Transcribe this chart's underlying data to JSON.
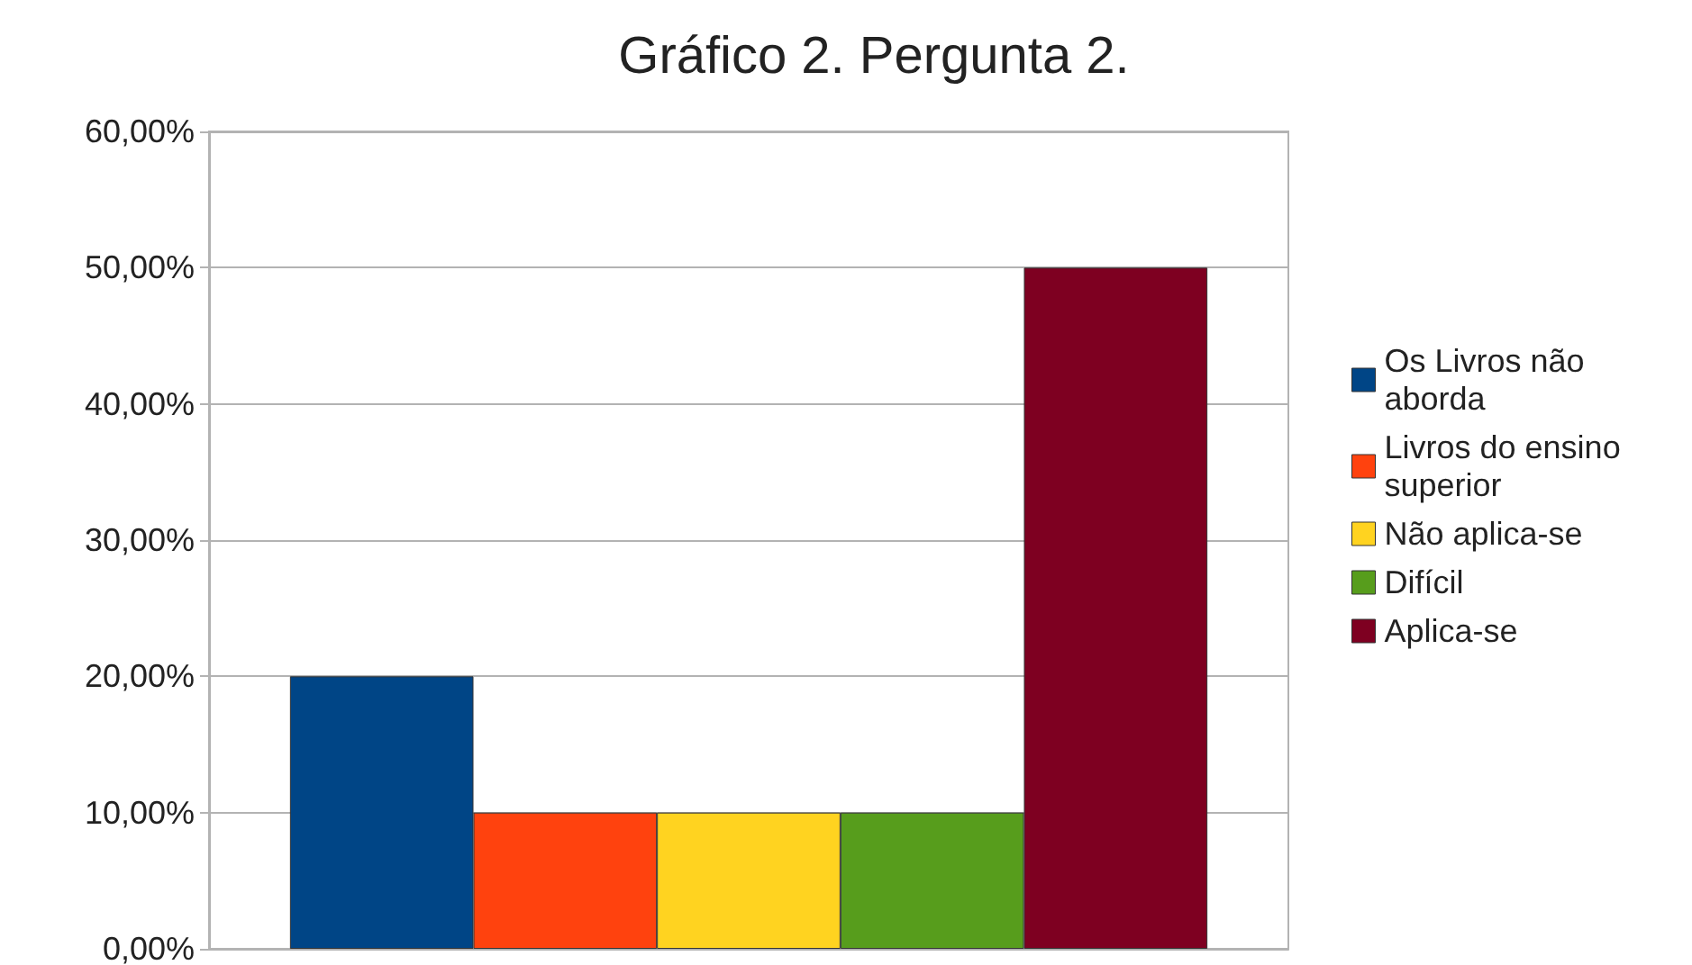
{
  "chart_data": {
    "type": "bar",
    "title": "Gráfico 2. Pergunta 2.",
    "categories": [
      null
    ],
    "series": [
      {
        "name": "Os Livros não aborda",
        "color": "#004586",
        "values": [
          20
        ]
      },
      {
        "name": "Livros do ensino superior",
        "color": "#ff420e",
        "values": [
          10
        ]
      },
      {
        "name": "Não aplica-se",
        "color": "#ffd320",
        "values": [
          10
        ]
      },
      {
        "name": "Difícil",
        "color": "#579d1c",
        "values": [
          10
        ]
      },
      {
        "name": "Aplica-se",
        "color": "#7e0021",
        "values": [
          50
        ]
      }
    ],
    "ylim": [
      0,
      60
    ],
    "yticks": [
      {
        "value": 0,
        "label": "0,00%"
      },
      {
        "value": 10,
        "label": "10,00%"
      },
      {
        "value": 20,
        "label": "20,00%"
      },
      {
        "value": 30,
        "label": "30,00%"
      },
      {
        "value": 40,
        "label": "40,00%"
      },
      {
        "value": 50,
        "label": "50,00%"
      },
      {
        "value": 60,
        "label": "60,00%"
      }
    ],
    "grid": "y",
    "legend": "right"
  }
}
